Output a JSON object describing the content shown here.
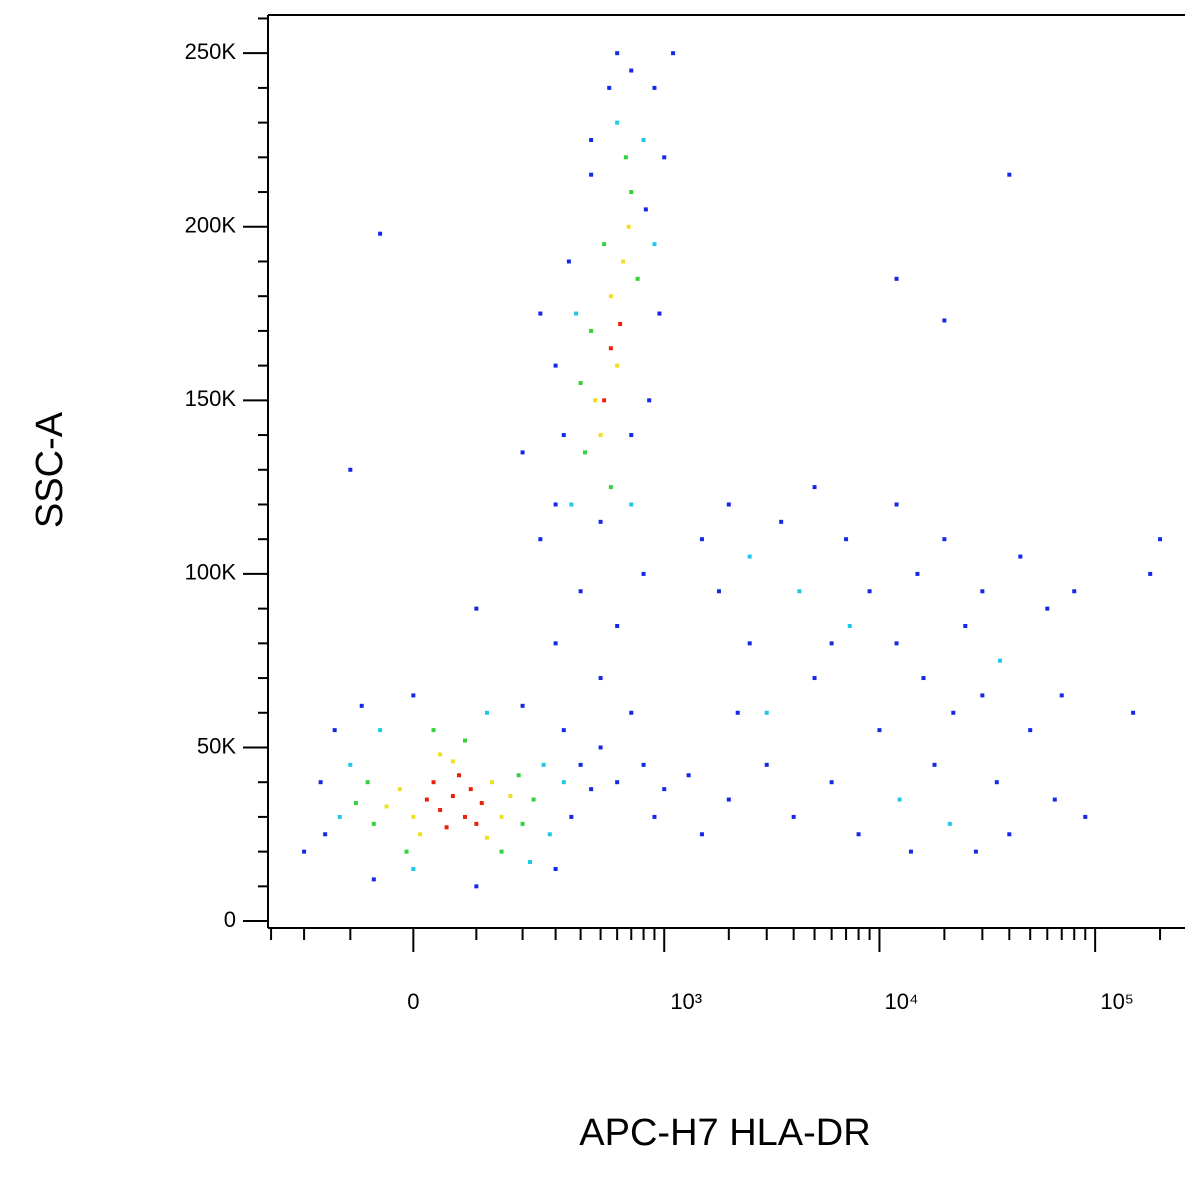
{
  "chart_data": {
    "type": "scatter",
    "xlabel": "APC-H7 HLA-DR",
    "ylabel": "SSC-A",
    "xscale": "biexponential",
    "xlim": [
      -311,
      261000
    ],
    "ylim": [
      -2000,
      261000
    ],
    "xticks": [
      0,
      {
        "value": 1000,
        "label": "10³"
      },
      {
        "value": 10000,
        "label": "10⁴"
      },
      {
        "value": 100000,
        "label": "10⁵"
      }
    ],
    "xminorticks": [
      -300,
      -200,
      -100,
      100,
      200,
      300,
      400,
      500,
      600,
      700,
      800,
      900,
      2000,
      3000,
      4000,
      5000,
      6000,
      7000,
      8000,
      9000,
      20000,
      30000,
      40000,
      50000,
      60000,
      70000,
      80000,
      90000,
      200000
    ],
    "yticks": [
      0,
      {
        "value": 50000,
        "label": "50K"
      },
      {
        "value": 100000,
        "label": "100K"
      },
      {
        "value": 150000,
        "label": "150K"
      },
      {
        "value": 200000,
        "label": "200K"
      },
      {
        "value": 250000,
        "label": "250K"
      }
    ],
    "yminorticks": [
      10000,
      20000,
      30000,
      40000,
      60000,
      70000,
      80000,
      90000,
      110000,
      120000,
      130000,
      140000,
      160000,
      170000,
      180000,
      190000,
      210000,
      220000,
      230000,
      240000,
      260000
    ],
    "series": [
      {
        "color": "#1428e6",
        "x": [
          -150,
          -160,
          -130,
          -200,
          330,
          360,
          400,
          300,
          200,
          0,
          -80,
          100,
          -60,
          450,
          500,
          600,
          800,
          1000,
          1300,
          700,
          900,
          500,
          300,
          400,
          250,
          200,
          100,
          600,
          800,
          330,
          300,
          350,
          450,
          550,
          700,
          900,
          1000,
          950,
          850,
          700,
          500,
          300,
          250,
          600,
          820,
          1100,
          1500,
          2000,
          2500,
          3500,
          5000,
          7000,
          9000,
          12000,
          15000,
          20000,
          25000,
          30000,
          45000,
          60000,
          80000,
          1800,
          2200,
          3000,
          4000,
          5000,
          6000,
          8000,
          10000,
          14000,
          18000,
          22000,
          28000,
          35000,
          40000,
          50000,
          65000,
          90000,
          1500,
          2000,
          6000,
          16000,
          30000,
          12000,
          70000,
          -50,
          450,
          20000,
          40000,
          150000,
          200000,
          12000,
          -100,
          180000
        ],
        "y": [
          25000,
          40000,
          55000,
          20000,
          55000,
          30000,
          45000,
          15000,
          62000,
          65000,
          62000,
          10000,
          12000,
          38000,
          50000,
          40000,
          45000,
          38000,
          42000,
          60000,
          30000,
          70000,
          80000,
          95000,
          110000,
          135000,
          90000,
          85000,
          100000,
          140000,
          160000,
          190000,
          215000,
          240000,
          245000,
          240000,
          220000,
          175000,
          150000,
          140000,
          115000,
          120000,
          175000,
          250000,
          205000,
          250000,
          110000,
          120000,
          80000,
          115000,
          125000,
          110000,
          95000,
          120000,
          100000,
          110000,
          85000,
          95000,
          105000,
          90000,
          95000,
          95000,
          60000,
          45000,
          30000,
          70000,
          40000,
          25000,
          55000,
          20000,
          45000,
          60000,
          20000,
          40000,
          25000,
          55000,
          35000,
          30000,
          25000,
          35000,
          80000,
          70000,
          65000,
          80000,
          65000,
          198000,
          225000,
          173000,
          215000,
          60000,
          110000,
          185000,
          130000,
          100000
        ]
      },
      {
        "color": "#1ec8e6",
        "x": [
          -120,
          -100,
          260,
          280,
          120,
          -50,
          0,
          220,
          330,
          800,
          700,
          380,
          360,
          900,
          600,
          2500,
          4250,
          7280,
          12400,
          21200,
          3000,
          36200
        ],
        "y": [
          30000,
          45000,
          45000,
          25000,
          60000,
          55000,
          15000,
          17000,
          40000,
          225000,
          120000,
          175000,
          120000,
          195000,
          230000,
          105000,
          95000,
          85000,
          35000,
          28000,
          60000,
          75000
        ]
      },
      {
        "color": "#32d23c",
        "x": [
          -60,
          -70,
          190,
          200,
          80,
          -10,
          150,
          -90,
          230,
          30,
          420,
          700,
          450,
          750,
          560,
          660,
          520,
          400
        ],
        "y": [
          28000,
          40000,
          42000,
          28000,
          52000,
          20000,
          20000,
          34000,
          35000,
          55000,
          135000,
          210000,
          170000,
          185000,
          125000,
          220000,
          195000,
          155000
        ]
      },
      {
        "color": "#f0e020",
        "x": [
          0,
          130,
          -20,
          150,
          60,
          10,
          120,
          -40,
          170,
          40,
          470,
          560,
          640,
          600,
          500,
          680
        ],
        "y": [
          30000,
          40000,
          38000,
          30000,
          46000,
          25000,
          24000,
          33000,
          36000,
          48000,
          150000,
          180000,
          190000,
          160000,
          140000,
          200000
        ]
      },
      {
        "color": "#e8200c",
        "x": [
          40,
          60,
          80,
          30,
          90,
          50,
          110,
          20,
          70,
          100,
          560,
          620,
          520
        ],
        "y": [
          32000,
          36000,
          30000,
          40000,
          38000,
          27000,
          34000,
          35000,
          42000,
          28000,
          165000,
          172000,
          150000
        ]
      }
    ]
  }
}
